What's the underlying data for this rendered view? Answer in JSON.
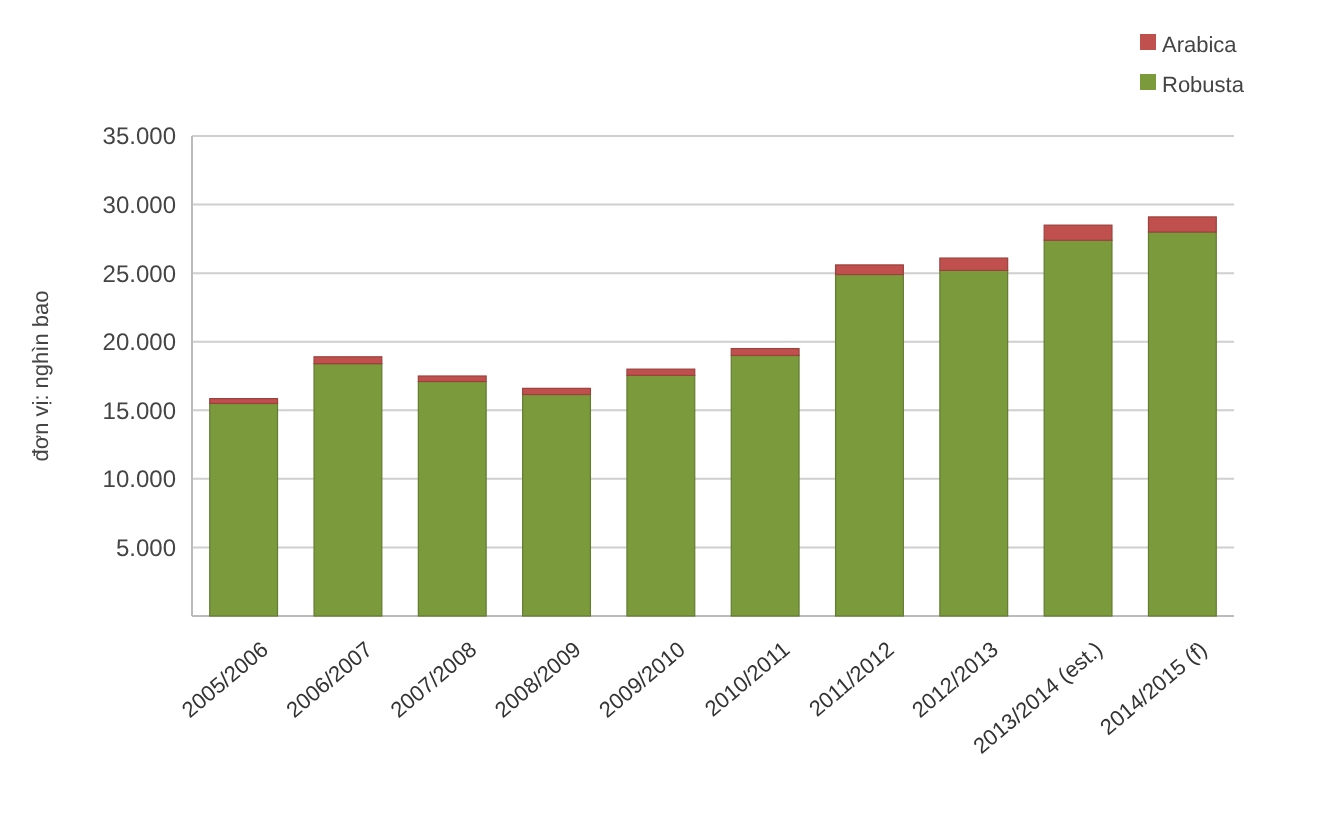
{
  "chart_data": {
    "type": "bar",
    "stacked": true,
    "ylabel": "đơn vị: nghìn bao",
    "categories": [
      "2005/2006",
      "2006/2007",
      "2007/2008",
      "2008/2009",
      "2009/2010",
      "2010/2011",
      "2011/2012",
      "2012/2013",
      "2013/2014 (est.)",
      "2014/2015 (f)"
    ],
    "series": [
      {
        "name": "Robusta",
        "color": "#7a9a3c",
        "values": [
          15500,
          18400,
          17100,
          16150,
          17550,
          19000,
          24900,
          25200,
          27400,
          28000
        ]
      },
      {
        "name": "Arabica",
        "color": "#c0504d",
        "values": [
          350,
          500,
          400,
          450,
          450,
          500,
          700,
          900,
          1100,
          1100
        ]
      }
    ],
    "ylim": [
      0,
      35000
    ],
    "yticks": [
      {
        "value": 0,
        "label": null
      },
      {
        "value": 5000,
        "label": "5.000"
      },
      {
        "value": 10000,
        "label": "10.000"
      },
      {
        "value": 15000,
        "label": "15.000"
      },
      {
        "value": 20000,
        "label": "20.000"
      },
      {
        "value": 25000,
        "label": "25.000"
      },
      {
        "value": 30000,
        "label": "30.000"
      },
      {
        "value": 35000,
        "label": "35.000"
      }
    ],
    "grid": "y",
    "legend": "top right"
  }
}
